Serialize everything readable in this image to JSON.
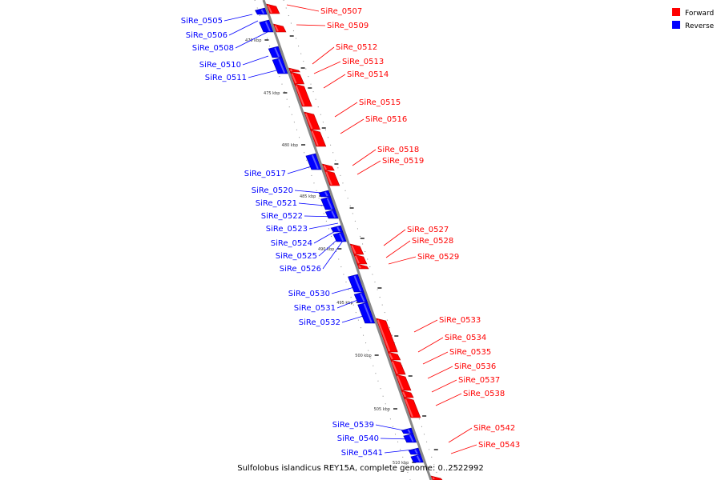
{
  "legend": {
    "forward": {
      "label": "Forward",
      "color": "#ff0000"
    },
    "reverse": {
      "label": "Reverse",
      "color": "#0000ff"
    }
  },
  "caption": "Sulfolobus islandicus REY15A, complete genome: 0..2522992",
  "ticks": [
    "470 kbp",
    "475 kbp",
    "480 kbp",
    "485 kbp",
    "490 kbp",
    "495 kbp",
    "500 kbp",
    "505 kbp",
    "510 kbp"
  ],
  "forward_genes": [
    "SiRe_0507",
    "SiRe_0509",
    "SiRe_0512",
    "SiRe_0513",
    "SiRe_0514",
    "SiRe_0515",
    "SiRe_0516",
    "SiRe_0518",
    "SiRe_0519",
    "SiRe_0527",
    "SiRe_0528",
    "SiRe_0529",
    "SiRe_0533",
    "SiRe_0534",
    "SiRe_0535",
    "SiRe_0536",
    "SiRe_0537",
    "SiRe_0538",
    "SiRe_0542",
    "SiRe_0543"
  ],
  "reverse_genes": [
    "SiRe_0505",
    "SiRe_0506",
    "SiRe_0508",
    "SiRe_0510",
    "SiRe_0511",
    "SiRe_0517",
    "SiRe_0520",
    "SiRe_0521",
    "SiRe_0522",
    "SiRe_0523",
    "SiRe_0524",
    "SiRe_0525",
    "SiRe_0526",
    "SiRe_0530",
    "SiRe_0531",
    "SiRe_0532",
    "SiRe_0539",
    "SiRe_0540",
    "SiRe_0541"
  ]
}
